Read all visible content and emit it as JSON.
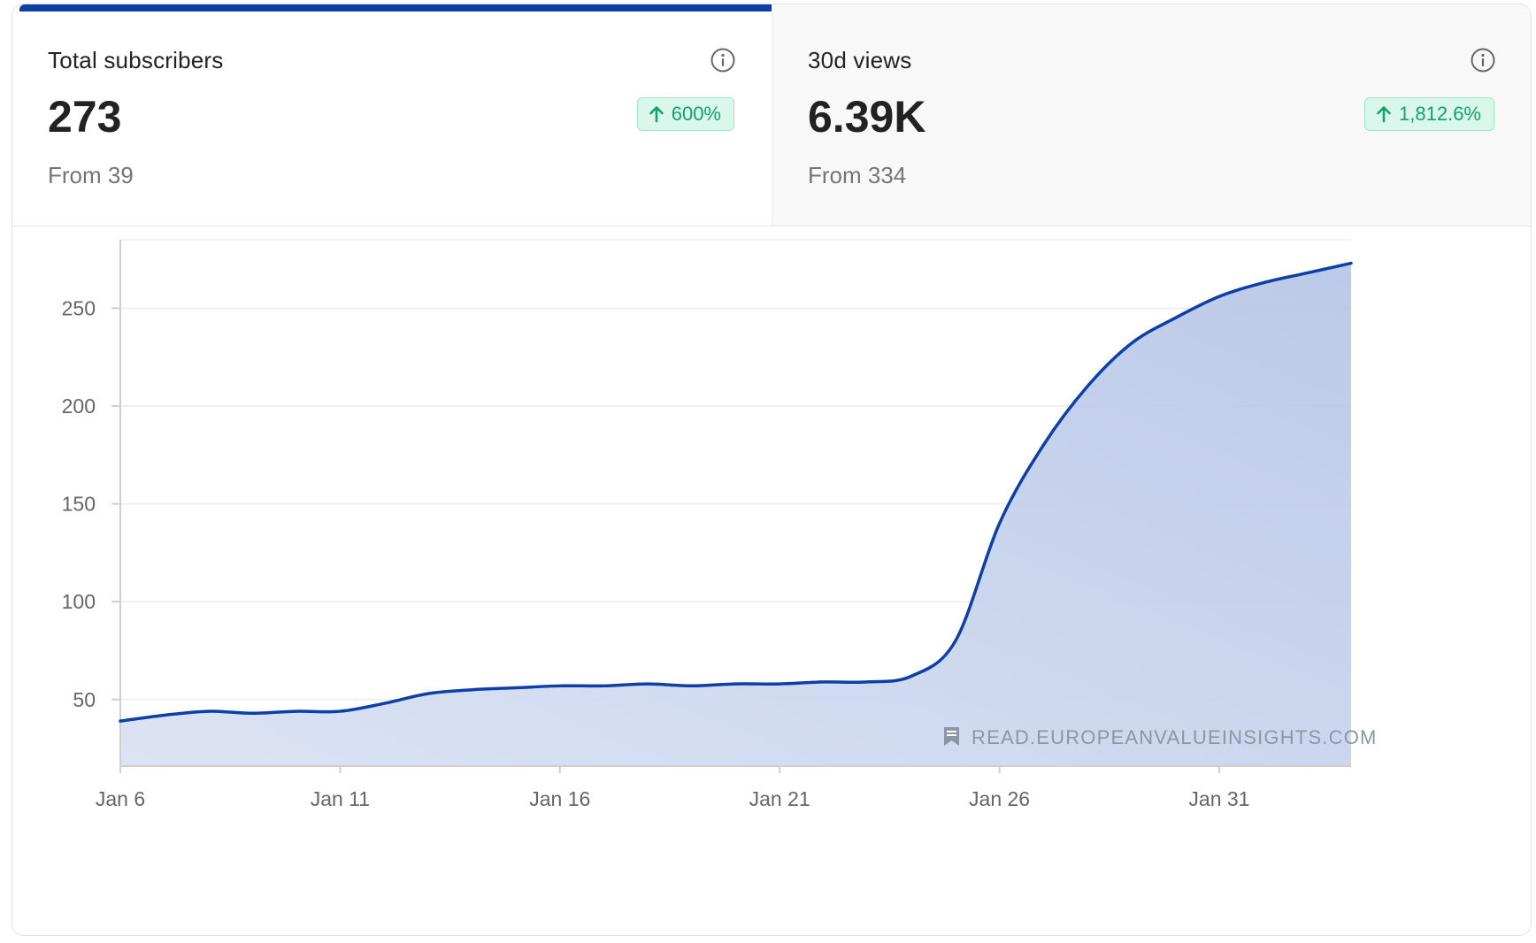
{
  "stats": [
    {
      "label": "Total subscribers",
      "value": "273",
      "from": "From 39",
      "change": "600%",
      "active": true
    },
    {
      "label": "30d views",
      "value": "6.39K",
      "from": "From 334",
      "change": "1,812.6%",
      "active": false
    }
  ],
  "icons": {
    "info": "info-icon",
    "up": "arrow-up-icon",
    "watermark": "bookmark-icon"
  },
  "colors": {
    "accent": "#0d3fa7",
    "fill": "#c3cfeb",
    "positive": "#12a36a",
    "positive_bg": "#d9f7ea"
  },
  "watermark": "READ.EUROPEANVALUEINSIGHTS.COM",
  "chart_data": {
    "type": "area",
    "title": "",
    "xlabel": "",
    "ylabel": "",
    "x_ticks": [
      "Jan 6",
      "Jan 11",
      "Jan 16",
      "Jan 21",
      "Jan 26",
      "Jan 31"
    ],
    "y_ticks": [
      50,
      100,
      150,
      200,
      250
    ],
    "ylim": [
      16,
      285
    ],
    "grid": true,
    "series": [
      {
        "x": [
          "Jan 6",
          "Jan 7",
          "Jan 8",
          "Jan 9",
          "Jan 10",
          "Jan 11",
          "Jan 12",
          "Jan 13",
          "Jan 14",
          "Jan 15",
          "Jan 16",
          "Jan 17",
          "Jan 18",
          "Jan 19",
          "Jan 20",
          "Jan 21",
          "Jan 22",
          "Jan 23",
          "Jan 24",
          "Jan 25",
          "Jan 26",
          "Jan 27",
          "Jan 28",
          "Jan 29",
          "Jan 30",
          "Jan 31",
          "Feb 1",
          "Feb 2",
          "Feb 3"
        ],
        "values": [
          39,
          42,
          44,
          43,
          44,
          44,
          48,
          53,
          55,
          56,
          57,
          57,
          58,
          57,
          58,
          58,
          59,
          59,
          62,
          80,
          140,
          180,
          210,
          232,
          245,
          256,
          263,
          268,
          273
        ]
      }
    ]
  }
}
